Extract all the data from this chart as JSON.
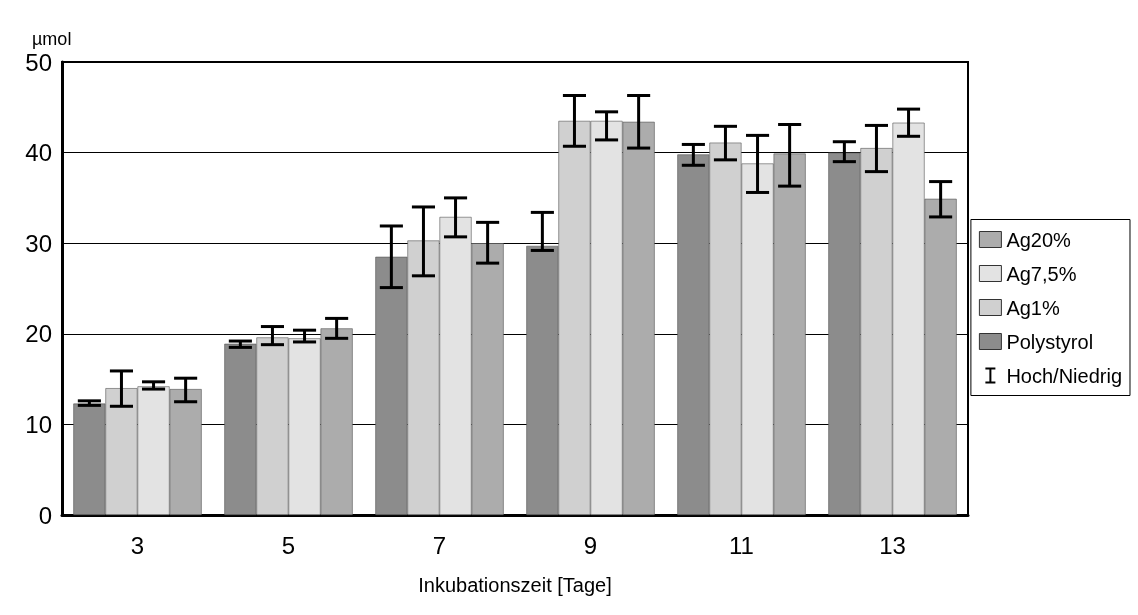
{
  "chart_data": {
    "type": "bar",
    "ylabel": "µmol",
    "xlabel": "Inkubationszeit [Tage]",
    "categories": [
      "3",
      "5",
      "7",
      "9",
      "11",
      "13"
    ],
    "series": [
      {
        "name": "Polystyrol",
        "color": "#8c8c8c",
        "values": [
          12.3,
          18.9,
          28.5,
          29.7,
          39.8,
          40.0
        ],
        "errors": [
          [
            12.1,
            12.6
          ],
          [
            18.5,
            19.2
          ],
          [
            25.1,
            31.9
          ],
          [
            29.2,
            33.4
          ],
          [
            38.6,
            40.9
          ],
          [
            39.0,
            41.2
          ]
        ]
      },
      {
        "name": "Ag1%",
        "color": "#d0d0d0",
        "values": [
          14.0,
          19.6,
          30.3,
          43.5,
          41.1,
          40.5
        ],
        "errors": [
          [
            12.0,
            15.9
          ],
          [
            18.8,
            20.8
          ],
          [
            26.4,
            34.0
          ],
          [
            40.7,
            46.3
          ],
          [
            39.2,
            42.9
          ],
          [
            37.9,
            43.0
          ]
        ]
      },
      {
        "name": "Ag7,5%",
        "color": "#e3e3e3",
        "values": [
          14.2,
          19.5,
          32.9,
          43.5,
          38.8,
          43.3
        ],
        "errors": [
          [
            13.9,
            14.7
          ],
          [
            19.1,
            20.4
          ],
          [
            30.7,
            35.0
          ],
          [
            41.4,
            44.5
          ],
          [
            35.6,
            41.9
          ],
          [
            41.8,
            44.8
          ]
        ]
      },
      {
        "name": "Ag20%",
        "color": "#acacac",
        "values": [
          13.9,
          20.6,
          30.0,
          43.4,
          39.9,
          34.9
        ],
        "errors": [
          [
            12.5,
            15.1
          ],
          [
            19.5,
            21.7
          ],
          [
            27.8,
            32.3
          ],
          [
            40.5,
            46.3
          ],
          [
            36.3,
            43.1
          ],
          [
            32.9,
            36.8
          ]
        ]
      }
    ],
    "annotations": [
      "Hoch/Niedrig"
    ],
    "ylim": [
      0,
      50
    ],
    "yticks": [
      0,
      10,
      20,
      30,
      40,
      50
    ],
    "grid": "y",
    "legend": "right"
  }
}
